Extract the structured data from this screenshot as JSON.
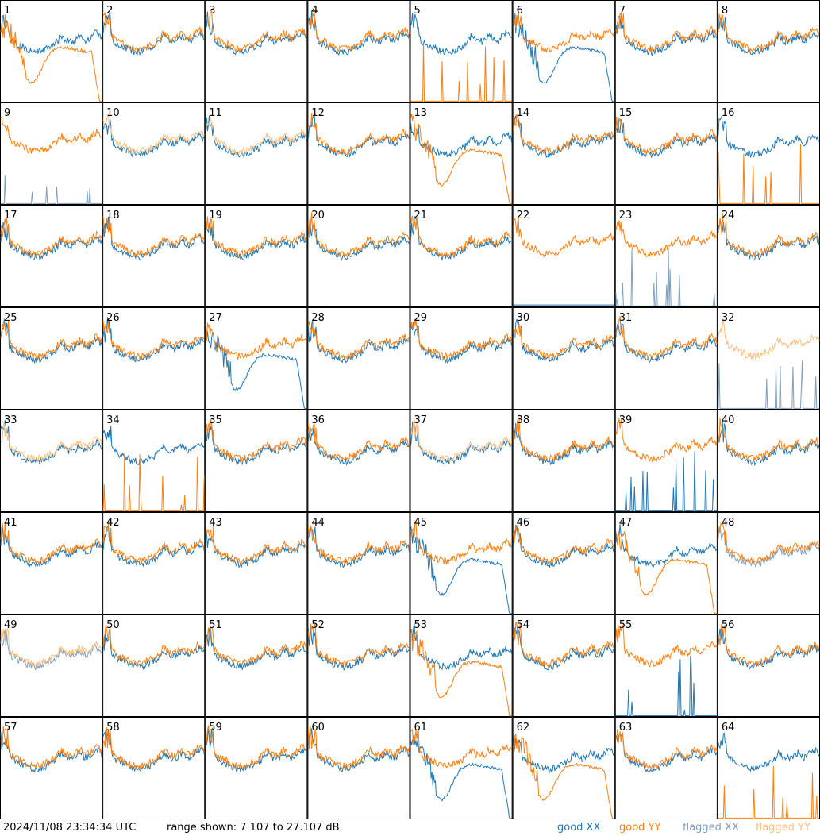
{
  "chart_data": {
    "type": "line",
    "layout": "small-multiples 8x8",
    "timestamp": "2024/11/08 23:34:34 UTC",
    "range_label": "range shown: 7.107 to 27.107 dB",
    "ylim_db": [
      7.107,
      27.107
    ],
    "legend": [
      {
        "label": "good XX",
        "color": "#1f77b4"
      },
      {
        "label": "good YY",
        "color": "#ff7f0e"
      },
      {
        "label": "flagged XX",
        "color": "#7f9fbf"
      },
      {
        "label": "flagged YY",
        "color": "#ffbf7f"
      }
    ],
    "colors": {
      "good_xx": "#1f77b4",
      "good_yy": "#ff7f0e",
      "flagged_xx": "#7f9fbf",
      "flagged_yy": "#ffbf7f"
    },
    "tiles": [
      {
        "label": "1",
        "xx": "normal",
        "yy": "dip"
      },
      {
        "label": "2",
        "xx": "normal",
        "yy": "normal"
      },
      {
        "label": "3",
        "xx": "normal",
        "yy": "normal"
      },
      {
        "label": "4",
        "xx": "normal",
        "yy": "normal"
      },
      {
        "label": "5",
        "xx": "normal",
        "yy": "spikes"
      },
      {
        "label": "6",
        "xx": "dip",
        "yy": "normal"
      },
      {
        "label": "7",
        "xx": "normal",
        "yy": "normal"
      },
      {
        "label": "8",
        "xx": "normal",
        "yy": "normal"
      },
      {
        "label": "9",
        "xx": "spikes",
        "yy": "normal",
        "xx_flagged": true
      },
      {
        "label": "10",
        "xx": "normal",
        "yy": "normal",
        "yy_flagged": true
      },
      {
        "label": "11",
        "xx": "normal",
        "yy": "normal",
        "yy_flagged": true
      },
      {
        "label": "12",
        "xx": "normal",
        "yy": "normal"
      },
      {
        "label": "13",
        "xx": "normal",
        "yy": "dip"
      },
      {
        "label": "14",
        "xx": "normal",
        "yy": "normal"
      },
      {
        "label": "15",
        "xx": "normal",
        "yy": "normal"
      },
      {
        "label": "16",
        "xx": "normal",
        "yy": "spikes"
      },
      {
        "label": "17",
        "xx": "normal",
        "yy": "normal"
      },
      {
        "label": "18",
        "xx": "normal",
        "yy": "normal"
      },
      {
        "label": "19",
        "xx": "normal",
        "yy": "normal"
      },
      {
        "label": "20",
        "xx": "normal",
        "yy": "normal"
      },
      {
        "label": "21",
        "xx": "normal",
        "yy": "normal"
      },
      {
        "label": "22",
        "xx": "flat",
        "yy": "normal"
      },
      {
        "label": "23",
        "xx": "spikes",
        "yy": "normal",
        "xx_flagged": true
      },
      {
        "label": "24",
        "xx": "normal",
        "yy": "normal"
      },
      {
        "label": "25",
        "xx": "normal",
        "yy": "normal"
      },
      {
        "label": "26",
        "xx": "normal",
        "yy": "normal"
      },
      {
        "label": "27",
        "xx": "dip",
        "yy": "normal"
      },
      {
        "label": "28",
        "xx": "normal",
        "yy": "normal"
      },
      {
        "label": "29",
        "xx": "normal",
        "yy": "normal"
      },
      {
        "label": "30",
        "xx": "normal",
        "yy": "normal"
      },
      {
        "label": "31",
        "xx": "normal",
        "yy": "normal"
      },
      {
        "label": "32",
        "xx": "spikes",
        "yy": "normal",
        "xx_flagged": true,
        "yy_flagged": true
      },
      {
        "label": "33",
        "xx": "normal",
        "yy": "normal",
        "yy_flagged": true
      },
      {
        "label": "34",
        "xx": "normal",
        "yy": "spikes"
      },
      {
        "label": "35",
        "xx": "normal",
        "yy": "normal"
      },
      {
        "label": "36",
        "xx": "normal",
        "yy": "normal"
      },
      {
        "label": "37",
        "xx": "normal",
        "yy": "normal",
        "yy_flagged": true
      },
      {
        "label": "38",
        "xx": "normal",
        "yy": "normal"
      },
      {
        "label": "39",
        "xx": "spikes",
        "yy": "normal"
      },
      {
        "label": "40",
        "xx": "normal",
        "yy": "normal"
      },
      {
        "label": "41",
        "xx": "normal",
        "yy": "normal"
      },
      {
        "label": "42",
        "xx": "normal",
        "yy": "normal"
      },
      {
        "label": "43",
        "xx": "normal",
        "yy": "normal"
      },
      {
        "label": "44",
        "xx": "normal",
        "yy": "normal"
      },
      {
        "label": "45",
        "xx": "dip",
        "yy": "normal"
      },
      {
        "label": "46",
        "xx": "normal",
        "yy": "normal"
      },
      {
        "label": "47",
        "xx": "normal",
        "yy": "dip"
      },
      {
        "label": "48",
        "xx": "normal",
        "yy": "normal",
        "xx_flagged": true
      },
      {
        "label": "49",
        "xx": "normal",
        "yy": "normal",
        "xx_flagged": true,
        "yy_flagged": true
      },
      {
        "label": "50",
        "xx": "normal",
        "yy": "normal"
      },
      {
        "label": "51",
        "xx": "normal",
        "yy": "normal"
      },
      {
        "label": "52",
        "xx": "normal",
        "yy": "normal"
      },
      {
        "label": "53",
        "xx": "normal",
        "yy": "dip"
      },
      {
        "label": "54",
        "xx": "normal",
        "yy": "normal"
      },
      {
        "label": "55",
        "xx": "spikes",
        "yy": "normal"
      },
      {
        "label": "56",
        "xx": "normal",
        "yy": "normal"
      },
      {
        "label": "57",
        "xx": "normal",
        "yy": "normal"
      },
      {
        "label": "58",
        "xx": "normal",
        "yy": "normal"
      },
      {
        "label": "59",
        "xx": "normal",
        "yy": "normal"
      },
      {
        "label": "60",
        "xx": "normal",
        "yy": "normal"
      },
      {
        "label": "61",
        "xx": "dip",
        "yy": "normal"
      },
      {
        "label": "62",
        "xx": "normal",
        "yy": "dip"
      },
      {
        "label": "63",
        "xx": "normal",
        "yy": "normal"
      },
      {
        "label": "64",
        "xx": "normal",
        "yy": "spikes"
      }
    ]
  }
}
